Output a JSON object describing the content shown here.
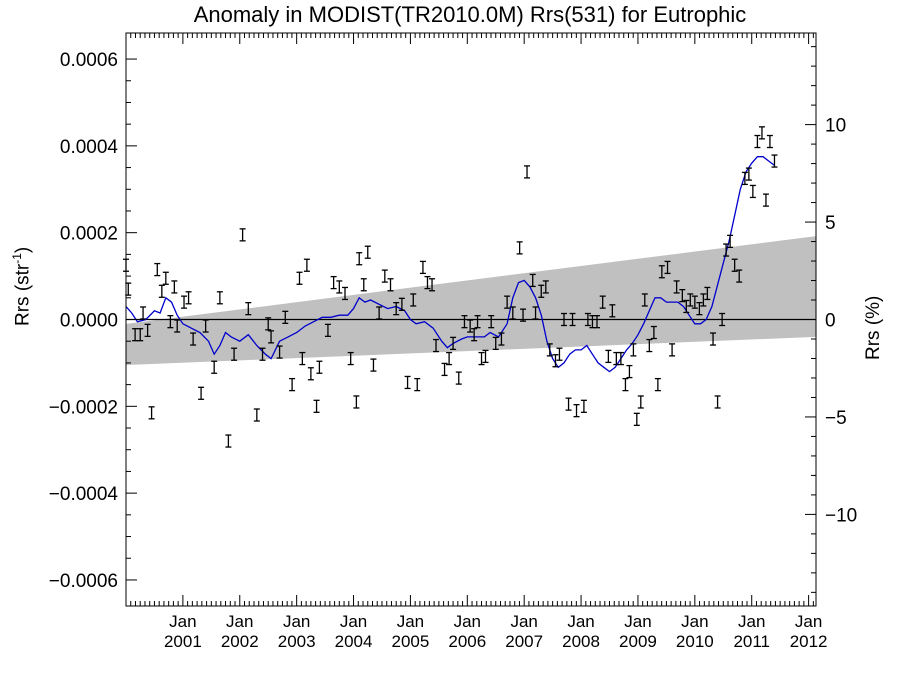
{
  "chart_data": {
    "type": "scatter",
    "title": "Anomaly in MODIST(TR2010.0M) Rrs(531) for Eutrophic",
    "ylabel": "Rrs (str",
    "ylabel_sup": "-1",
    "ylabel_close": ")",
    "y2label": "Rrs (%)",
    "ylim": [
      -0.00066,
      0.00066
    ],
    "y2lim": [
      -14.7,
      14.7
    ],
    "xlim": [
      2000.0,
      2012.13
    ],
    "yticks": [
      "0.0006",
      "0.0004",
      "0.0002",
      "0.0000",
      "−0.0002",
      "−0.0004",
      "−0.0006"
    ],
    "ytick_values": [
      0.0006,
      0.0004,
      0.0002,
      0,
      -0.0002,
      -0.0004,
      -0.0006
    ],
    "y2ticks": [
      "10",
      "5",
      "0",
      "−5",
      "−10"
    ],
    "y2tick_values": [
      10,
      5,
      0,
      -5,
      -10
    ],
    "xticks": [
      {
        "month": "Jan",
        "year": "2001",
        "x": 2001.0
      },
      {
        "month": "Jan",
        "year": "2002",
        "x": 2002.0
      },
      {
        "month": "Jan",
        "year": "2003",
        "x": 2003.0
      },
      {
        "month": "Jan",
        "year": "2004",
        "x": 2004.0
      },
      {
        "month": "Jan",
        "year": "2005",
        "x": 2005.0
      },
      {
        "month": "Jan",
        "year": "2006",
        "x": 2006.0
      },
      {
        "month": "Jan",
        "year": "2007",
        "x": 2007.0
      },
      {
        "month": "Jan",
        "year": "2008",
        "x": 2008.0
      },
      {
        "month": "Jan",
        "year": "2009",
        "x": 2009.0
      },
      {
        "month": "Jan",
        "year": "2010",
        "x": 2010.0
      },
      {
        "month": "Jan",
        "year": "2011",
        "x": 2011.0
      },
      {
        "month": "Jan",
        "year": "2012",
        "x": 2012.0
      }
    ],
    "trend_band": {
      "x": [
        2000.0,
        2012.13
      ],
      "upper": [
        -1e-05,
        0.000192
      ],
      "lower": [
        -0.000105,
        -4e-05
      ]
    },
    "points": [
      [
        2000.0,
        0.000125
      ],
      [
        2000.04,
        7e-05
      ],
      [
        2000.16,
        -3.5e-05
      ],
      [
        2000.25,
        -3.5e-05
      ],
      [
        2000.3,
        1.5e-05
      ],
      [
        2000.38,
        -2.5e-05
      ],
      [
        2000.45,
        -0.000215
      ],
      [
        2000.55,
        0.000115
      ],
      [
        2000.63,
        6.5e-05
      ],
      [
        2000.7,
        9.5e-05
      ],
      [
        2000.78,
        -5e-06
      ],
      [
        2000.85,
        7.5e-05
      ],
      [
        2000.9,
        -1.5e-05
      ],
      [
        2001.02,
        4e-05
      ],
      [
        2001.1,
        5e-05
      ],
      [
        2001.18,
        -4.5e-05
      ],
      [
        2001.32,
        -0.00017
      ],
      [
        2001.4,
        -1.5e-05
      ],
      [
        2001.55,
        -0.00011
      ],
      [
        2001.65,
        5e-05
      ],
      [
        2001.8,
        -0.00028
      ],
      [
        2001.9,
        -8e-05
      ],
      [
        2002.05,
        0.000195
      ],
      [
        2002.15,
        2.5e-05
      ],
      [
        2002.3,
        -0.00022
      ],
      [
        2002.4,
        -8e-05
      ],
      [
        2002.5,
        -1e-05
      ],
      [
        2002.55,
        -4e-05
      ],
      [
        2002.7,
        -7.5e-05
      ],
      [
        2002.8,
        5e-06
      ],
      [
        2002.92,
        -0.00015
      ],
      [
        2003.05,
        9.5e-05
      ],
      [
        2003.1,
        -9e-05
      ],
      [
        2003.18,
        0.000125
      ],
      [
        2003.25,
        -0.000125
      ],
      [
        2003.35,
        -0.0002
      ],
      [
        2003.4,
        -0.00011
      ],
      [
        2003.55,
        -2.5e-05
      ],
      [
        2003.65,
        8.5e-05
      ],
      [
        2003.75,
        7.5e-05
      ],
      [
        2003.85,
        6e-05
      ],
      [
        2003.95,
        -9e-05
      ],
      [
        2004.05,
        -0.00019
      ],
      [
        2004.1,
        0.00014
      ],
      [
        2004.18,
        8e-05
      ],
      [
        2004.25,
        0.000155
      ],
      [
        2004.35,
        -0.000105
      ],
      [
        2004.45,
        1.5e-05
      ],
      [
        2004.55,
        0.0001
      ],
      [
        2004.65,
        8e-05
      ],
      [
        2004.75,
        2.5e-05
      ],
      [
        2004.85,
        3.5e-05
      ],
      [
        2004.95,
        -0.000145
      ],
      [
        2005.05,
        4.5e-05
      ],
      [
        2005.12,
        -0.00015
      ],
      [
        2005.22,
        0.00012
      ],
      [
        2005.3,
        8.5e-05
      ],
      [
        2005.38,
        8e-05
      ],
      [
        2005.45,
        -6e-05
      ],
      [
        2005.6,
        -0.000115
      ],
      [
        2005.68,
        -9e-05
      ],
      [
        2005.75,
        -5.5e-05
      ],
      [
        2005.85,
        -0.000135
      ],
      [
        2005.95,
        -5e-06
      ],
      [
        2006.05,
        -1.5e-05
      ],
      [
        2006.12,
        -3.5e-05
      ],
      [
        2006.18,
        -5e-06
      ],
      [
        2006.25,
        -9e-05
      ],
      [
        2006.32,
        -8.5e-05
      ],
      [
        2006.42,
        -5e-06
      ],
      [
        2006.5,
        -5.5e-05
      ],
      [
        2006.6,
        -4.5e-05
      ],
      [
        2006.7,
        4e-05
      ],
      [
        2006.8,
        1.5e-05
      ],
      [
        2006.92,
        0.000165
      ],
      [
        2006.98,
        1e-05
      ],
      [
        2007.05,
        0.00034
      ],
      [
        2007.15,
        9e-05
      ],
      [
        2007.2,
        1.5e-05
      ],
      [
        2007.3,
        6.5e-05
      ],
      [
        2007.38,
        7.5e-05
      ],
      [
        2007.45,
        -7e-05
      ],
      [
        2007.55,
        -9.5e-05
      ],
      [
        2007.62,
        -8e-05
      ],
      [
        2007.7,
        0.0
      ],
      [
        2007.78,
        -0.000195
      ],
      [
        2007.85,
        0.0
      ],
      [
        2007.92,
        -0.00021
      ],
      [
        2008.05,
        -0.0002
      ],
      [
        2008.12,
        0.0
      ],
      [
        2008.2,
        -5e-06
      ],
      [
        2008.28,
        -5e-06
      ],
      [
        2008.38,
        4e-05
      ],
      [
        2008.48,
        -8.5e-05
      ],
      [
        2008.55,
        2e-05
      ],
      [
        2008.62,
        -9e-05
      ],
      [
        2008.7,
        -9e-05
      ],
      [
        2008.78,
        -0.00015
      ],
      [
        2008.85,
        -0.00012
      ],
      [
        2008.92,
        -7e-05
      ],
      [
        2008.98,
        -0.00023
      ],
      [
        2009.05,
        -0.00019
      ],
      [
        2009.12,
        4.5e-05
      ],
      [
        2009.2,
        -6e-05
      ],
      [
        2009.28,
        -3e-05
      ],
      [
        2009.35,
        -0.00015
      ],
      [
        2009.42,
        0.00011
      ],
      [
        2009.52,
        0.00012
      ],
      [
        2009.6,
        -7e-05
      ],
      [
        2009.68,
        7.5e-05
      ],
      [
        2009.78,
        5.5e-05
      ],
      [
        2009.85,
        3e-05
      ],
      [
        2009.92,
        4.5e-05
      ],
      [
        2010.0,
        4e-05
      ],
      [
        2010.08,
        2.5e-05
      ],
      [
        2010.15,
        4.5e-05
      ],
      [
        2010.22,
        6e-05
      ],
      [
        2010.32,
        -4.5e-05
      ],
      [
        2010.4,
        -0.00019
      ],
      [
        2010.48,
        0.0
      ],
      [
        2010.55,
        0.00016
      ],
      [
        2010.62,
        0.00018
      ],
      [
        2010.7,
        0.000125
      ],
      [
        2010.78,
        0.0001
      ],
      [
        2010.88,
        0.000325
      ],
      [
        2010.95,
        0.000335
      ],
      [
        2011.02,
        0.000295
      ],
      [
        2011.1,
        0.00041
      ],
      [
        2011.18,
        0.00043
      ],
      [
        2011.25,
        0.000275
      ],
      [
        2011.32,
        0.00041
      ],
      [
        2011.4,
        0.000365
      ]
    ],
    "smooth": [
      [
        2000.0,
        3e-05
      ],
      [
        2000.1,
        1.5e-05
      ],
      [
        2000.2,
        -5e-06
      ],
      [
        2000.35,
        0.0
      ],
      [
        2000.5,
        2e-05
      ],
      [
        2000.6,
        1.5e-05
      ],
      [
        2000.7,
        5e-05
      ],
      [
        2000.8,
        4e-05
      ],
      [
        2000.9,
        1e-05
      ],
      [
        2001.0,
        -1e-05
      ],
      [
        2001.15,
        -2e-05
      ],
      [
        2001.3,
        -3e-05
      ],
      [
        2001.45,
        -5e-05
      ],
      [
        2001.55,
        -8e-05
      ],
      [
        2001.65,
        -6e-05
      ],
      [
        2001.75,
        -3e-05
      ],
      [
        2001.85,
        -4e-05
      ],
      [
        2002.0,
        -5e-05
      ],
      [
        2002.15,
        -3.5e-05
      ],
      [
        2002.3,
        -6e-05
      ],
      [
        2002.45,
        -8e-05
      ],
      [
        2002.55,
        -9e-05
      ],
      [
        2002.7,
        -5e-05
      ],
      [
        2002.85,
        -4e-05
      ],
      [
        2003.0,
        -3e-05
      ],
      [
        2003.15,
        -1.5e-05
      ],
      [
        2003.3,
        -5e-06
      ],
      [
        2003.45,
        5e-06
      ],
      [
        2003.6,
        5e-06
      ],
      [
        2003.75,
        1e-05
      ],
      [
        2003.9,
        1e-05
      ],
      [
        2004.0,
        2.5e-05
      ],
      [
        2004.1,
        5e-05
      ],
      [
        2004.2,
        4e-05
      ],
      [
        2004.3,
        4.5e-05
      ],
      [
        2004.45,
        3.5e-05
      ],
      [
        2004.6,
        2.5e-05
      ],
      [
        2004.75,
        3e-05
      ],
      [
        2004.9,
        2e-05
      ],
      [
        2005.0,
        0.0
      ],
      [
        2005.1,
        -1e-05
      ],
      [
        2005.25,
        -5e-06
      ],
      [
        2005.4,
        -2e-05
      ],
      [
        2005.55,
        -5e-05
      ],
      [
        2005.65,
        -6.5e-05
      ],
      [
        2005.75,
        -5.5e-05
      ],
      [
        2005.9,
        -4.5e-05
      ],
      [
        2006.0,
        -4e-05
      ],
      [
        2006.15,
        -4e-05
      ],
      [
        2006.3,
        -4e-05
      ],
      [
        2006.4,
        -3e-05
      ],
      [
        2006.55,
        -4e-05
      ],
      [
        2006.7,
        -1e-05
      ],
      [
        2006.8,
        5e-05
      ],
      [
        2006.9,
        8.5e-05
      ],
      [
        2007.0,
        9e-05
      ],
      [
        2007.1,
        7.5e-05
      ],
      [
        2007.2,
        5e-05
      ],
      [
        2007.3,
        1e-05
      ],
      [
        2007.4,
        -5e-05
      ],
      [
        2007.5,
        -9e-05
      ],
      [
        2007.6,
        -0.00011
      ],
      [
        2007.7,
        -0.0001
      ],
      [
        2007.8,
        -8e-05
      ],
      [
        2007.9,
        -7e-05
      ],
      [
        2008.0,
        -7e-05
      ],
      [
        2008.1,
        -6e-05
      ],
      [
        2008.2,
        -8e-05
      ],
      [
        2008.3,
        -0.0001
      ],
      [
        2008.4,
        -0.00011
      ],
      [
        2008.5,
        -0.00012
      ],
      [
        2008.6,
        -0.00011
      ],
      [
        2008.7,
        -9e-05
      ],
      [
        2008.8,
        -7e-05
      ],
      [
        2008.9,
        -5.5e-05
      ],
      [
        2009.0,
        -3.5e-05
      ],
      [
        2009.1,
        -1e-05
      ],
      [
        2009.2,
        2e-05
      ],
      [
        2009.3,
        5e-05
      ],
      [
        2009.4,
        5e-05
      ],
      [
        2009.5,
        4e-05
      ],
      [
        2009.6,
        4e-05
      ],
      [
        2009.7,
        4e-05
      ],
      [
        2009.8,
        3e-05
      ],
      [
        2009.9,
        1e-05
      ],
      [
        2010.0,
        -1e-05
      ],
      [
        2010.1,
        -1e-05
      ],
      [
        2010.2,
        0.0
      ],
      [
        2010.3,
        3e-05
      ],
      [
        2010.4,
        8e-05
      ],
      [
        2010.5,
        0.00013
      ],
      [
        2010.6,
        0.00018
      ],
      [
        2010.7,
        0.00024
      ],
      [
        2010.8,
        0.0003
      ],
      [
        2010.9,
        0.00034
      ],
      [
        2011.0,
        0.00036
      ],
      [
        2011.1,
        0.000375
      ],
      [
        2011.2,
        0.000375
      ],
      [
        2011.3,
        0.000365
      ],
      [
        2011.4,
        0.000355
      ]
    ],
    "colors": {
      "band": "#c0c0c0",
      "smooth": "#0000cc",
      "points": "#000000",
      "axis": "#000000"
    },
    "grid": false,
    "legend": "none"
  }
}
